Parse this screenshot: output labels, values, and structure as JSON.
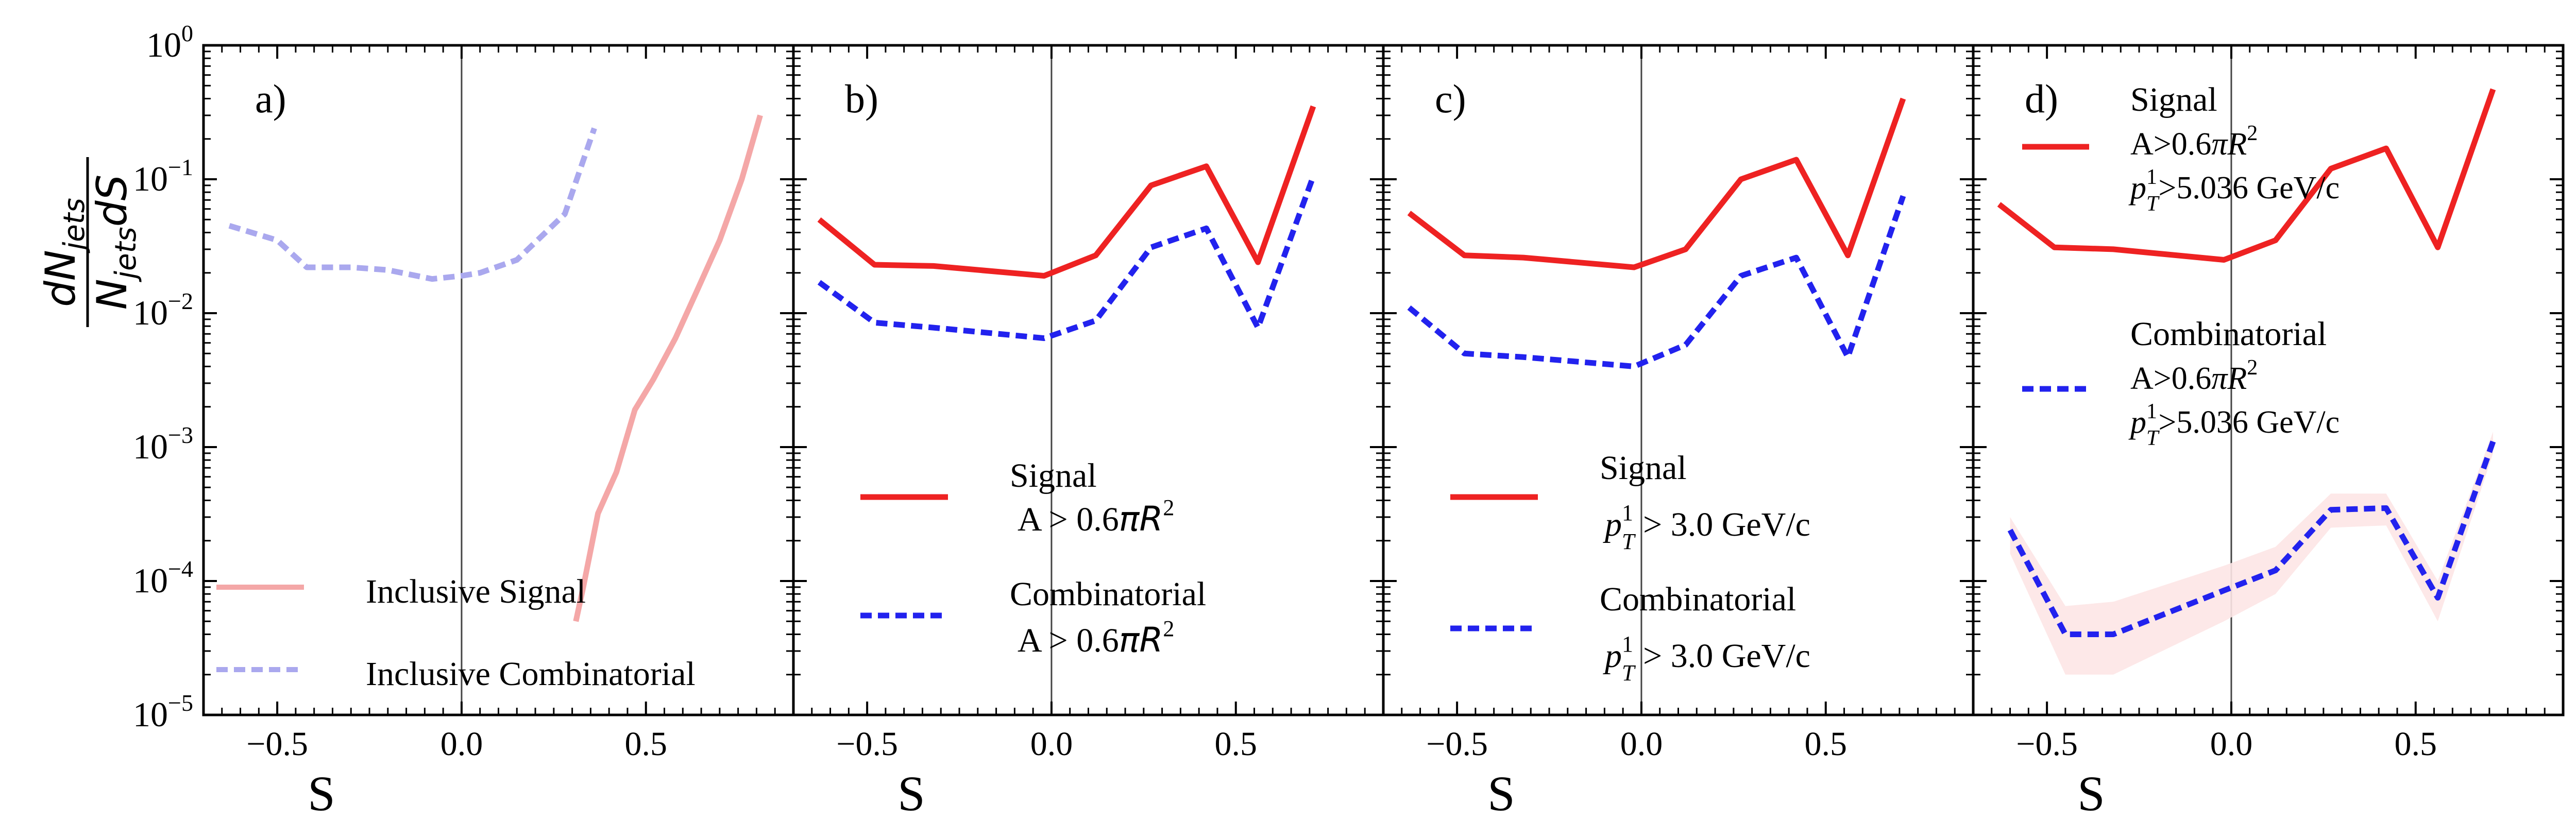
{
  "figure": {
    "ylabel_numerator": "dN",
    "ylabel_numerator_sub": "jets",
    "ylabel_denominator": "N",
    "ylabel_denominator_sub": "jets",
    "ylabel_denominator_tail": "dS",
    "y_ticks": [
      {
        "base": "10",
        "exp": "0"
      },
      {
        "base": "10",
        "exp": "−1"
      },
      {
        "base": "10",
        "exp": "−2"
      },
      {
        "base": "10",
        "exp": "−3"
      },
      {
        "base": "10",
        "exp": "−4"
      },
      {
        "base": "10",
        "exp": "−5"
      }
    ],
    "colors": {
      "signal": "#ee2222",
      "combinatorial": "#2222ee",
      "signal_light": "#f4a7a7",
      "combinatorial_light": "#aaa8ee",
      "band": "#fde6e6"
    }
  },
  "chart_data": [
    {
      "type": "line",
      "panel_label": "a)",
      "xlabel": "S",
      "ylabel": "dN_jets / N_jets dS",
      "yscale": "log",
      "ylim": [
        1e-05,
        1
      ],
      "xlim": [
        -0.7,
        0.9
      ],
      "xticks": [
        "−0.5",
        "0.0",
        "0.5"
      ],
      "series": [
        {
          "name": "Inclusive Signal",
          "style": "solid",
          "color": "#f4a7a7",
          "x": [
            0.31,
            0.33,
            0.37,
            0.42,
            0.47,
            0.52,
            0.58,
            0.64,
            0.7,
            0.76,
            0.81
          ],
          "y": [
            5e-05,
            9e-05,
            0.00032,
            0.00065,
            0.0019,
            0.0032,
            0.0065,
            0.015,
            0.035,
            0.1,
            0.3
          ]
        },
        {
          "name": "Inclusive Combinatorial",
          "style": "dashed",
          "color": "#aaa8ee",
          "x": [
            -0.63,
            -0.5,
            -0.42,
            -0.3,
            -0.2,
            -0.08,
            0.0,
            0.05,
            0.15,
            0.28,
            0.36
          ],
          "y": [
            0.045,
            0.035,
            0.022,
            0.022,
            0.021,
            0.018,
            0.019,
            0.02,
            0.025,
            0.055,
            0.24
          ]
        }
      ],
      "legend": [
        "Inclusive Signal",
        "Inclusive Combinatorial"
      ]
    },
    {
      "type": "line",
      "panel_label": "b)",
      "xlabel": "S",
      "yscale": "log",
      "ylim": [
        1e-05,
        1
      ],
      "xlim": [
        -0.7,
        0.9
      ],
      "xticks": [
        "−0.5",
        "0.0",
        "0.5"
      ],
      "series": [
        {
          "name": "Signal",
          "style": "solid",
          "color": "#ee2222",
          "x": [
            -0.63,
            -0.48,
            -0.32,
            -0.02,
            0.12,
            0.27,
            0.42,
            0.56,
            0.71
          ],
          "y": [
            0.05,
            0.023,
            0.0225,
            0.019,
            0.027,
            0.09,
            0.125,
            0.024,
            0.35
          ]
        },
        {
          "name": "Combinatorial",
          "style": "dashed",
          "color": "#2222ee",
          "x": [
            -0.63,
            -0.48,
            -0.32,
            -0.02,
            0.12,
            0.27,
            0.42,
            0.56,
            0.71
          ],
          "y": [
            0.017,
            0.0085,
            0.0078,
            0.0065,
            0.0088,
            0.031,
            0.043,
            0.0078,
            0.105
          ]
        }
      ],
      "legend": [
        {
          "title": "Signal",
          "cut_text": "A > 0.6",
          "cut_pi": "π",
          "cut_r": "R",
          "cut_sup": "2"
        },
        {
          "title": "Combinatorial",
          "cut_text": "A > 0.6",
          "cut_pi": "π",
          "cut_r": "R",
          "cut_sup": "2"
        }
      ]
    },
    {
      "type": "line",
      "panel_label": "c)",
      "xlabel": "S",
      "yscale": "log",
      "ylim": [
        1e-05,
        1
      ],
      "xlim": [
        -0.7,
        0.9
      ],
      "xticks": [
        "−0.5",
        "0.0",
        "0.5"
      ],
      "series": [
        {
          "name": "Signal",
          "style": "solid",
          "color": "#ee2222",
          "x": [
            -0.63,
            -0.48,
            -0.32,
            -0.02,
            0.12,
            0.27,
            0.42,
            0.56,
            0.71
          ],
          "y": [
            0.056,
            0.027,
            0.026,
            0.022,
            0.03,
            0.1,
            0.14,
            0.027,
            0.4
          ]
        },
        {
          "name": "Combinatorial",
          "style": "dashed",
          "color": "#2222ee",
          "x": [
            -0.63,
            -0.48,
            -0.32,
            -0.02,
            0.12,
            0.27,
            0.42,
            0.56,
            0.71
          ],
          "y": [
            0.011,
            0.005,
            0.0047,
            0.004,
            0.0058,
            0.019,
            0.026,
            0.0047,
            0.075
          ]
        }
      ],
      "legend": [
        {
          "title": "Signal",
          "pt": "p",
          "pt_sup": "1",
          "pt_sub": "T",
          "cut_text": " > 3.0 GeV/c"
        },
        {
          "title": "Combinatorial",
          "pt": "p",
          "pt_sup": "1",
          "pt_sub": "T",
          "cut_text": " > 3.0 GeV/c"
        }
      ]
    },
    {
      "type": "line",
      "panel_label": "d)",
      "xlabel": "S",
      "yscale": "log",
      "ylim": [
        1e-05,
        1
      ],
      "xlim": [
        -0.7,
        0.9
      ],
      "xticks": [
        "−0.5",
        "0.0",
        "0.5"
      ],
      "series": [
        {
          "name": "Signal",
          "style": "solid",
          "color": "#ee2222",
          "x": [
            -0.63,
            -0.48,
            -0.32,
            -0.02,
            0.12,
            0.27,
            0.42,
            0.56,
            0.71
          ],
          "y": [
            0.065,
            0.031,
            0.03,
            0.025,
            0.035,
            0.12,
            0.17,
            0.031,
            0.47
          ]
        },
        {
          "name": "Combinatorial",
          "style": "dashed",
          "color": "#2222ee",
          "x": [
            -0.6,
            -0.45,
            -0.32,
            -0.02,
            0.12,
            0.27,
            0.42,
            0.56,
            0.71
          ],
          "y": [
            0.00024,
            4e-05,
            4e-05,
            8.5e-05,
            0.00012,
            0.00034,
            0.00035,
            7.5e-05,
            0.0011
          ]
        }
      ],
      "band": {
        "x": [
          -0.6,
          -0.45,
          -0.32,
          -0.02,
          0.12,
          0.27,
          0.42,
          0.56,
          0.71
        ],
        "low": [
          0.00016,
          2e-05,
          2e-05,
          5e-05,
          8e-05,
          0.00025,
          0.00026,
          5e-05,
          0.0009
        ],
        "high": [
          0.0003,
          6.5e-05,
          7e-05,
          0.00013,
          0.00018,
          0.00045,
          0.00045,
          0.0001,
          0.0013
        ]
      },
      "legend": [
        {
          "title": "Signal",
          "line1_text": "A>0.6",
          "line1_pi": "π",
          "line1_r": "R",
          "line1_sup": "2",
          "pt": "p",
          "pt_sup": "1",
          "pt_sub": "T",
          "line2_text": ">5.036 GeV/c"
        },
        {
          "title": "Combinatorial",
          "line1_text": "A>0.6",
          "line1_pi": "π",
          "line1_r": "R",
          "line1_sup": "2",
          "pt": "p",
          "pt_sup": "1",
          "pt_sub": "T",
          "line2_text": ">5.036 GeV/c"
        }
      ]
    }
  ]
}
